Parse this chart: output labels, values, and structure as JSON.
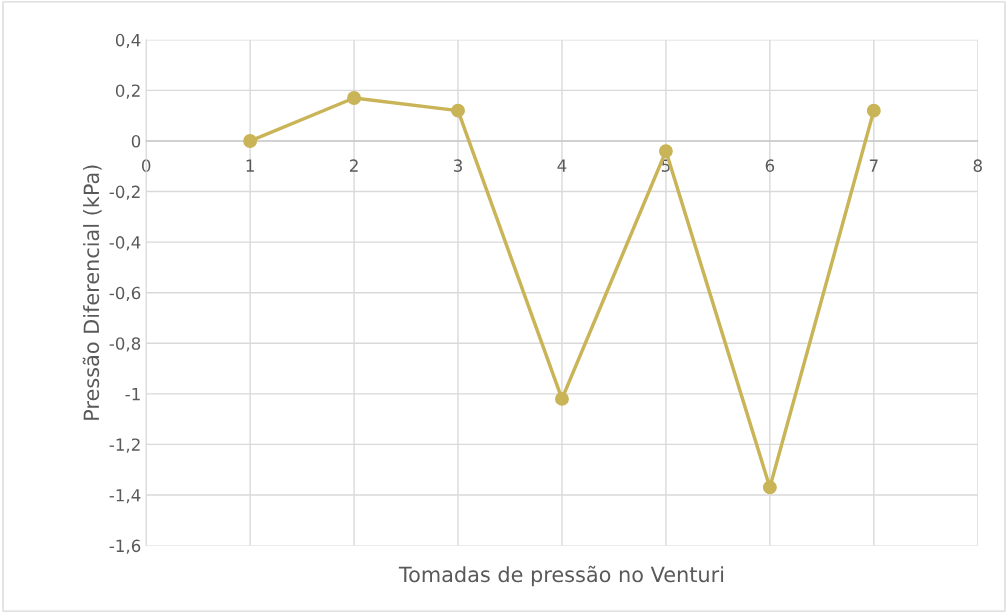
{
  "chart_data": {
    "type": "line",
    "xlabel": "Tomadas de pressão no Venturi",
    "ylabel": "Pressão Diferencial (kPa)",
    "x": [
      1,
      2,
      3,
      4,
      5,
      6,
      7
    ],
    "series": [
      {
        "color": "#c9b458",
        "values": [
          0,
          0.17,
          0.12,
          -1.02,
          -0.04,
          -1.37,
          0.12
        ]
      }
    ],
    "xlim": [
      0,
      8
    ],
    "xticks": [
      0,
      1,
      2,
      3,
      4,
      5,
      6,
      7,
      8
    ],
    "ylim": [
      -1.6,
      0.4
    ],
    "yticks": [
      {
        "value": 0.4,
        "label": "0,4"
      },
      {
        "value": 0.2,
        "label": "0,2"
      },
      0,
      {
        "value": -0.2,
        "label": "-0,2"
      },
      {
        "value": -0.4,
        "label": "-0,4"
      },
      {
        "value": -0.6,
        "label": "-0,6"
      },
      {
        "value": -0.8,
        "label": "-0,8"
      },
      -1,
      {
        "value": -1.2,
        "label": "-1,2"
      },
      {
        "value": -1.4,
        "label": "-1,4"
      },
      {
        "value": -1.6,
        "label": "-1,6"
      }
    ],
    "grid": true,
    "marker": "circle",
    "line_style": "solid"
  }
}
